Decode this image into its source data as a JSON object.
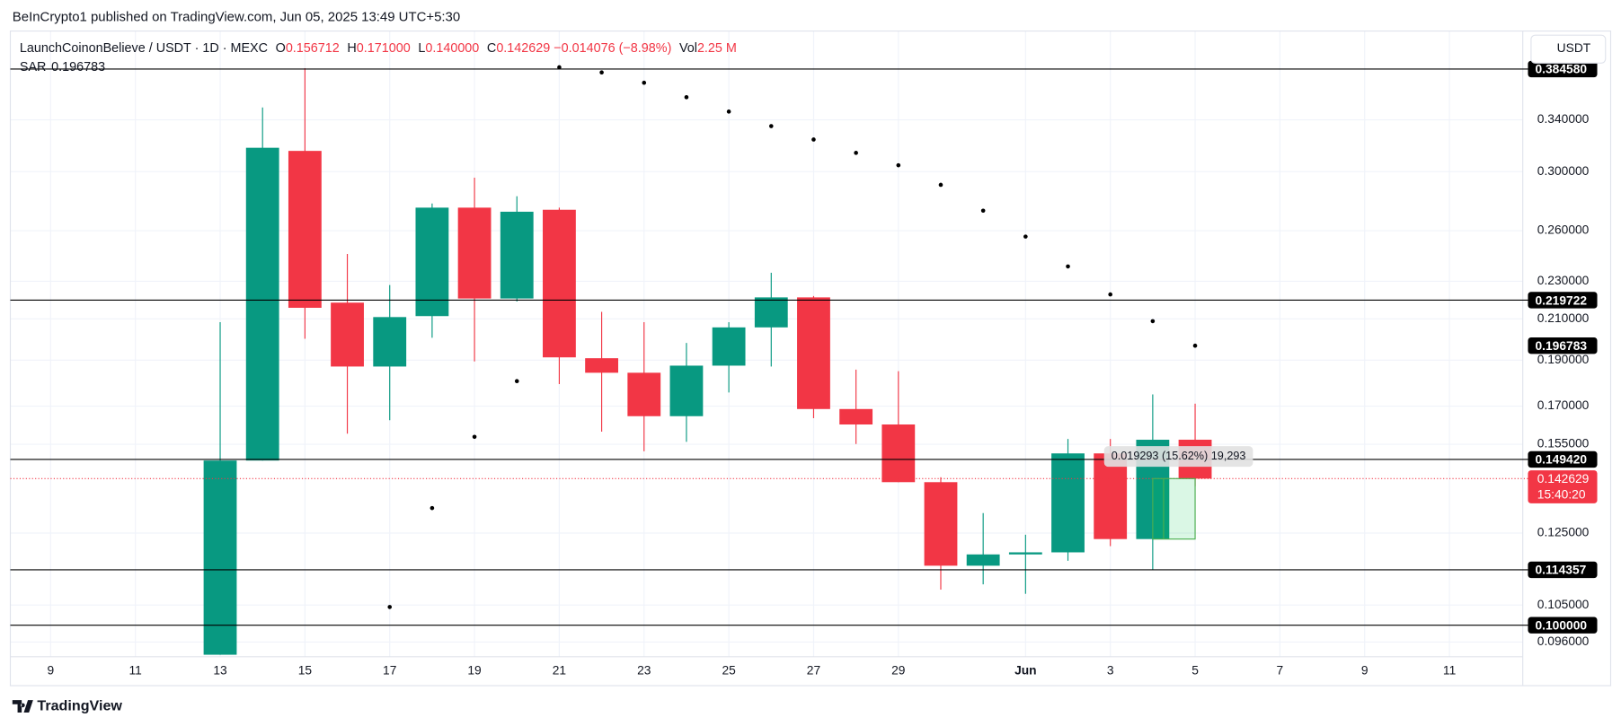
{
  "chart_data": {
    "type": "candlestick",
    "header": "BeInCrypto1 published on TradingView.com, Jun 05, 2025 13:49 UTC+5:30",
    "legend": {
      "symbol": "LaunchCoinonBelieve / USDT · 1D · MEXC",
      "fields": [
        {
          "label": "O",
          "value": "0.156712"
        },
        {
          "label": "H",
          "value": "0.171000"
        },
        {
          "label": "L",
          "value": "0.140000"
        },
        {
          "label": "C",
          "value": "0.142629"
        }
      ],
      "change": "−0.014076 (−8.98%)",
      "vol_label": "Vol",
      "volume": "2.25 M"
    },
    "sar_name": "SAR",
    "currency": "USDT",
    "logo": "TradingView",
    "measure": "0.019293 (15.62%) 19,293",
    "countdown": "15:40:20",
    "up_color": "#089981",
    "down_color": "#f23645",
    "sar_color": "#000000",
    "log_scale": true,
    "grid": true,
    "x": [
      13,
      14,
      15,
      16,
      17,
      18,
      19,
      20,
      21,
      22,
      23,
      24,
      25,
      26,
      27,
      28,
      29,
      30,
      31,
      32,
      33,
      34,
      35,
      36
    ],
    "open": [
      0.0931,
      0.149,
      0.3154,
      0.2184,
      0.1871,
      0.2114,
      0.2749,
      0.2206,
      0.2735,
      0.1909,
      0.1843,
      0.1659,
      0.1875,
      0.2057,
      0.2212,
      0.1688,
      0.1626,
      0.1414,
      0.1155,
      0.1187,
      0.1193,
      0.1516,
      0.1232,
      0.156712
    ],
    "high": [
      0.2083,
      0.3504,
      0.3853,
      0.2457,
      0.2279,
      0.2777,
      0.2956,
      0.2826,
      0.2749,
      0.2136,
      0.2083,
      0.1981,
      0.2083,
      0.2348,
      0.2219,
      0.1857,
      0.185,
      0.1431,
      0.1312,
      0.1245,
      0.157,
      0.157,
      0.1749,
      0.171
    ],
    "low": [
      0.0931,
      0.149,
      0.2001,
      0.159,
      0.1643,
      0.2006,
      0.1894,
      0.219,
      0.1793,
      0.1598,
      0.1524,
      0.1559,
      0.1757,
      0.1871,
      0.1651,
      0.1551,
      0.1414,
      0.109,
      0.1104,
      0.1079,
      0.1169,
      0.1211,
      0.1143,
      0.14
    ],
    "close": [
      0.149,
      0.3178,
      0.2157,
      0.1871,
      0.2109,
      0.2749,
      0.2206,
      0.2722,
      0.1913,
      0.1843,
      0.1659,
      0.1875,
      0.2057,
      0.2212,
      0.1688,
      0.1626,
      0.1414,
      0.1155,
      0.1187,
      0.1193,
      0.1516,
      0.1232,
      0.1567,
      0.142629
    ],
    "sar": [
      null,
      null,
      null,
      null,
      0.1045,
      0.1328,
      0.1578,
      0.1806,
      0.3862,
      0.3814,
      0.372,
      0.3592,
      0.3469,
      0.3349,
      0.3242,
      0.3139,
      0.3046,
      0.2905,
      0.2729,
      0.2563,
      0.2384,
      0.2228,
      0.2088,
      0.196783
    ],
    "levels": [
      {
        "value": 0.38458,
        "label": "0.384580"
      },
      {
        "value": 0.219722,
        "label": "0.219722"
      },
      {
        "value": 0.14942,
        "label": "0.149420"
      },
      {
        "value": 0.114357,
        "label": "0.114357"
      },
      {
        "value": 0.1,
        "label": "0.100000"
      }
    ],
    "xlim": [
      8.05,
      43.73
    ],
    "xticks": [
      9,
      11,
      13,
      15,
      17,
      19,
      21,
      23,
      25,
      27,
      29,
      {
        "value": 32,
        "label": "Jun"
      },
      {
        "value": 34,
        "label": "3"
      },
      {
        "value": 36,
        "label": "5"
      },
      {
        "value": 38,
        "label": "7"
      },
      {
        "value": 40,
        "label": "9"
      },
      {
        "value": 42,
        "label": "11"
      }
    ],
    "ylim": [
      0.0866,
      0.4216
    ],
    "yticks": [
      {
        "value": 0.34,
        "label": "0.340000"
      },
      {
        "value": 0.3,
        "label": "0.300000"
      },
      {
        "value": 0.26,
        "label": "0.260000"
      },
      {
        "value": 0.23,
        "label": "0.230000"
      },
      {
        "value": 0.21,
        "label": "0.210000"
      },
      {
        "value": 0.19,
        "label": "0.190000"
      },
      {
        "value": 0.17,
        "label": "0.170000"
      },
      {
        "value": 0.155,
        "label": "0.155000"
      },
      {
        "value": 0.125,
        "label": "0.125000"
      },
      {
        "value": 0.105,
        "label": "0.105000"
      },
      {
        "value": 0.096,
        "label": "0.096000"
      }
    ]
  }
}
